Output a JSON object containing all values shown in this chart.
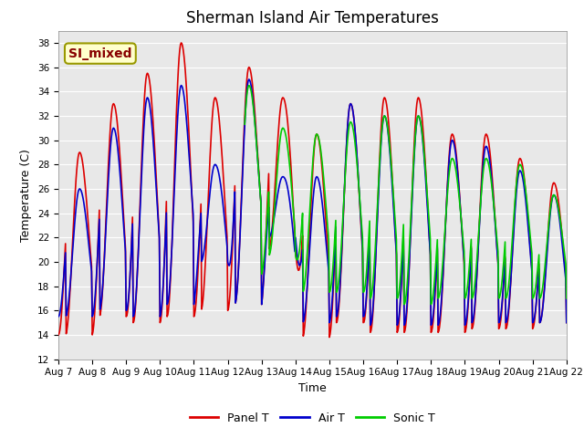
{
  "title": "Sherman Island Air Temperatures",
  "xlabel": "Time",
  "ylabel": "Temperature (C)",
  "ylim": [
    12,
    39
  ],
  "yticks": [
    12,
    14,
    16,
    18,
    20,
    22,
    24,
    26,
    28,
    30,
    32,
    34,
    36,
    38
  ],
  "panel_color": "#dd0000",
  "air_color": "#0000cc",
  "sonic_color": "#00cc00",
  "legend_labels": [
    "Panel T",
    "Air T",
    "Sonic T"
  ],
  "annotation_text": "SI_mixed",
  "annotation_bg": "#ffffcc",
  "annotation_border": "#999900",
  "annotation_text_color": "#880000",
  "fig_bg_color": "#ffffff",
  "plot_bg_color": "#e8e8e8",
  "grid_color": "#ffffff",
  "title_fontsize": 12,
  "axis_label_fontsize": 9,
  "tick_fontsize": 7.5,
  "legend_fontsize": 9,
  "linewidth": 1.2
}
